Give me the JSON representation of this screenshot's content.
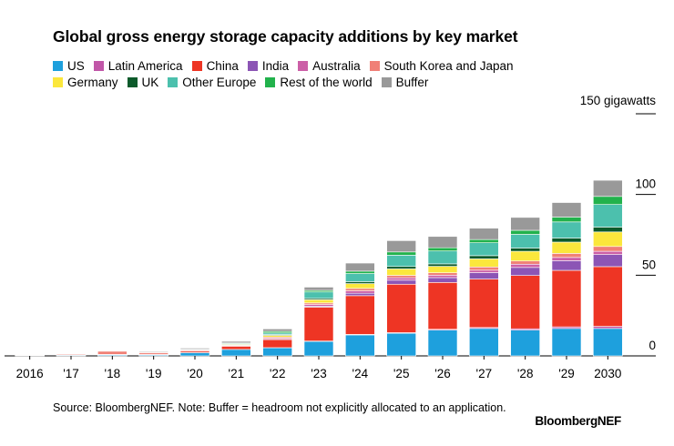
{
  "title": "Global gross energy storage capacity additions by key market",
  "unit_label": "150 gigawatts",
  "source": "Source: BloombergNEF. Note: Buffer = headroom not explicitly allocated to an application.",
  "brand": "BloombergNEF",
  "legend": [
    {
      "name": "US",
      "color": "#1ea0dd"
    },
    {
      "name": "Latin America",
      "color": "#c157a8"
    },
    {
      "name": "China",
      "color": "#ee3524"
    },
    {
      "name": "India",
      "color": "#8c55b5"
    },
    {
      "name": "Australia",
      "color": "#cc5fa7"
    },
    {
      "name": "South Korea and Japan",
      "color": "#f08077"
    },
    {
      "name": "Germany",
      "color": "#fbe73c"
    },
    {
      "name": "UK",
      "color": "#0c5a2b"
    },
    {
      "name": "Other Europe",
      "color": "#4cc0ad"
    },
    {
      "name": "Rest of the world",
      "color": "#22b24c"
    },
    {
      "name": "Buffer",
      "color": "#999999"
    }
  ],
  "chart_data": {
    "type": "bar",
    "stacked": true,
    "title": "Global gross energy storage capacity additions by key market",
    "ylabel": "150 gigawatts",
    "ylim": [
      0,
      150
    ],
    "yticks": [
      0,
      50,
      100
    ],
    "categories": [
      "2016",
      "'17",
      "'18",
      "'19",
      "'20",
      "'21",
      "'22",
      "'23",
      "'24",
      "'25",
      "'26",
      "'27",
      "'28",
      "'29",
      "2030"
    ],
    "series": [
      {
        "name": "US",
        "values": [
          0.3,
          0.4,
          0.6,
          0.6,
          2,
          4,
          5,
          9,
          13,
          14,
          16,
          17,
          16,
          17,
          17
        ]
      },
      {
        "name": "Latin America",
        "values": [
          0,
          0,
          0,
          0,
          0,
          0,
          0.1,
          0.2,
          0.3,
          0.4,
          0.5,
          0.6,
          0.8,
          1,
          1.3
        ]
      },
      {
        "name": "China",
        "values": [
          0.1,
          0.4,
          0.3,
          0.4,
          0.9,
          2,
          5,
          21,
          24,
          30,
          29,
          30,
          33,
          35,
          37
        ]
      },
      {
        "name": "India",
        "values": [
          0,
          0,
          0,
          0,
          0,
          0,
          0.2,
          0.6,
          1.5,
          2.5,
          3,
          4,
          5,
          6,
          7.5
        ]
      },
      {
        "name": "Australia",
        "values": [
          0,
          0,
          0,
          0,
          0,
          0.2,
          0.6,
          1,
          1.5,
          1.5,
          1.5,
          1.5,
          2,
          2,
          2
        ]
      },
      {
        "name": "South Korea and Japan",
        "values": [
          0.2,
          0.5,
          2,
          1,
          0.6,
          0.4,
          0.8,
          1,
          1.5,
          1.5,
          1.5,
          2,
          2,
          2.5,
          3
        ]
      },
      {
        "name": "Germany",
        "values": [
          0,
          0,
          0,
          0,
          0.3,
          0.5,
          1,
          2,
          3,
          4,
          4,
          5,
          6,
          7,
          9
        ]
      },
      {
        "name": "UK",
        "values": [
          0,
          0,
          0,
          0,
          0,
          0,
          0.5,
          0.8,
          1.2,
          1.5,
          1.5,
          2,
          2,
          2.5,
          3
        ]
      },
      {
        "name": "Other Europe",
        "values": [
          0,
          0,
          0,
          0.3,
          0.3,
          0.5,
          1,
          4,
          5,
          7,
          8,
          8,
          8.5,
          10,
          14
        ]
      },
      {
        "name": "Rest of the world",
        "values": [
          0,
          0,
          0,
          0,
          0,
          0.4,
          1,
          1,
          1.5,
          2,
          2,
          2,
          2.5,
          3,
          5
        ]
      },
      {
        "name": "Buffer",
        "values": [
          0,
          0.2,
          0.3,
          0.5,
          0.7,
          1,
          1.5,
          2,
          5,
          7,
          7,
          7,
          8,
          9,
          10
        ]
      }
    ],
    "grid": false,
    "legend_position": "top"
  }
}
